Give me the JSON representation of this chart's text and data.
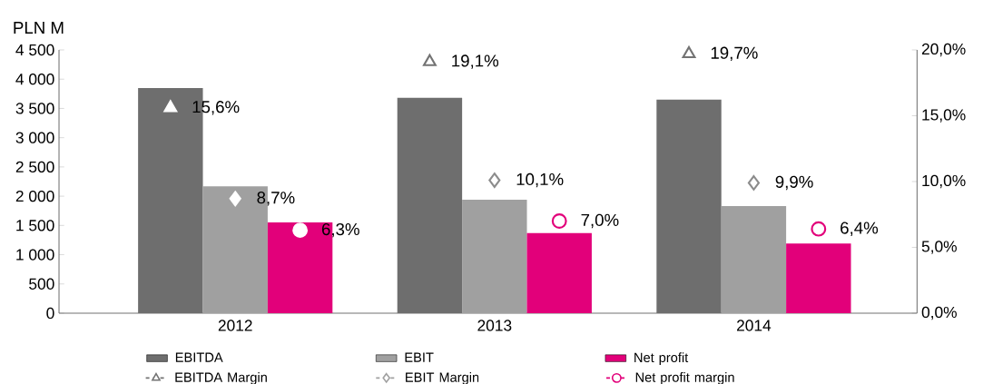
{
  "chart_data": {
    "type": "bar",
    "ylabel": "PLN M",
    "legend": "bottom",
    "categories": [
      "2012",
      "2013",
      "2014"
    ],
    "series": [
      {
        "name": "EBITDA",
        "color": "#6e6e6e",
        "values": [
          3850,
          3680,
          3650
        ]
      },
      {
        "name": "EBIT",
        "color": "#a0a0a0",
        "values": [
          2170,
          1940,
          1830
        ]
      },
      {
        "name": "Net profit",
        "color": "#e2007a",
        "values": [
          1550,
          1370,
          1190
        ]
      },
      {
        "name": "EBITDA Margin",
        "type": "scatter",
        "axis": "y2",
        "marker": "triangle",
        "line_style": "dashed",
        "color": "#737373",
        "colors": [
          "#ffffff",
          "#737373",
          "#737373"
        ],
        "values": [
          15.6,
          19.1,
          19.7
        ],
        "value_labels": [
          "15,6%",
          "19,1%",
          "19,7%"
        ]
      },
      {
        "name": "EBIT Margin",
        "type": "scatter",
        "axis": "y2",
        "marker": "diamond",
        "line_style": "dashed",
        "color": "#a0a0a0",
        "colors": [
          "#ffffff",
          "#8c8c8c",
          "#8c8c8c"
        ],
        "values": [
          8.7,
          10.1,
          9.9
        ],
        "value_labels": [
          "8,7%",
          "10,1%",
          "9,9%"
        ]
      },
      {
        "name": "Net profit margin",
        "type": "scatter",
        "axis": "y2",
        "marker": "circle",
        "line_style": "dashed",
        "color": "#e2007a",
        "colors": [
          "#ffffff",
          "#e2007a",
          "#e2007a"
        ],
        "values": [
          6.3,
          7.0,
          6.4
        ],
        "value_labels": [
          "6,3%",
          "7,0%",
          "6,4%"
        ]
      }
    ],
    "ylim": [
      0,
      4500
    ],
    "yticks": [
      {
        "value": 0,
        "label": "0"
      },
      {
        "value": 500,
        "label": "500"
      },
      {
        "value": 1000,
        "label": "1 000"
      },
      {
        "value": 1500,
        "label": "1 500"
      },
      {
        "value": 2000,
        "label": "2 000"
      },
      {
        "value": 2500,
        "label": "2 500"
      },
      {
        "value": 3000,
        "label": "3 000"
      },
      {
        "value": 3500,
        "label": "3 500"
      },
      {
        "value": 4000,
        "label": "4 000"
      },
      {
        "value": 4500,
        "label": "4 500"
      }
    ],
    "y2lim": [
      0,
      20
    ],
    "y2ticks": [
      {
        "value": 0,
        "label": "0,0%"
      },
      {
        "value": 5,
        "label": "5,0%"
      },
      {
        "value": 10,
        "label": "10,0%"
      },
      {
        "value": 15,
        "label": "15,0%"
      },
      {
        "value": 20,
        "label": "20,0%"
      }
    ]
  }
}
